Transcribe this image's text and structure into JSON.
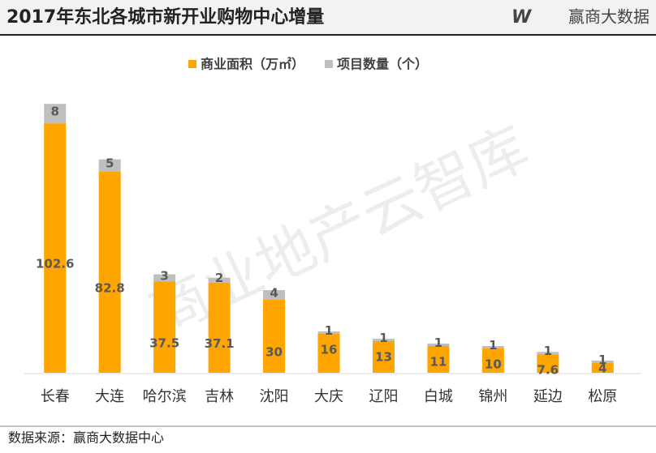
{
  "chart_data": {
    "type": "stacked-bar",
    "title": "2017年东北各城市新开业购物中心增量",
    "brand": "赢商大数据",
    "watermark": "商业地产云智库",
    "source": "数据来源：赢商大数据中心",
    "categories": [
      "长春",
      "大连",
      "哈尔滨",
      "吉林",
      "沈阳",
      "大庆",
      "辽阳",
      "白城",
      "锦州",
      "延边",
      "松原"
    ],
    "series": [
      {
        "name": "商业面积（万㎡）",
        "color": "#ffa500",
        "values": [
          102.6,
          82.8,
          37.5,
          37.1,
          30,
          16,
          13,
          11,
          10,
          7.6,
          4
        ]
      },
      {
        "name": "项目数量（个）",
        "color": "#bfbfbf",
        "values": [
          8,
          5,
          3,
          2,
          4,
          1,
          1,
          1,
          1,
          1,
          1
        ]
      }
    ],
    "ylim": [
      0,
      115
    ],
    "legend": "top"
  }
}
